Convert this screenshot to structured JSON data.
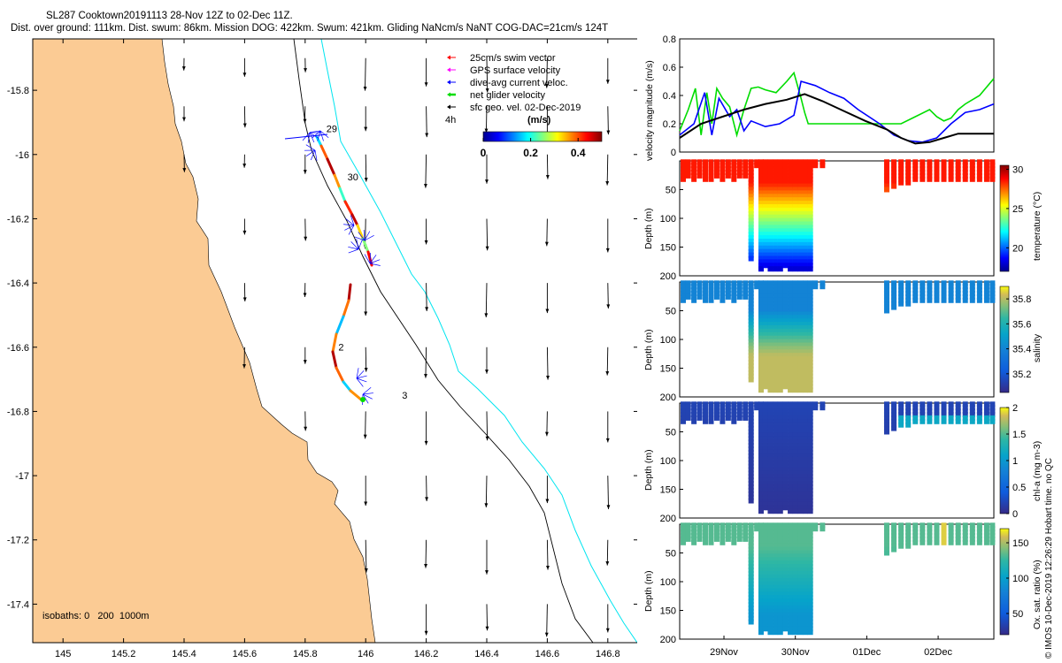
{
  "header": {
    "title_line1": "SL287 Cooktown20191113 28-Nov 12Z to 02-Dec 11Z.",
    "title_line2": "Dist. over ground: 111km. Dist. swum: 86km. Mission DOG: 422km. Swum: 421km. Gliding NaNcm/s NaNT COG-DAC=21cm/s 124T"
  },
  "footer_credit": "© IMOS 10-Dec-2019 12:26:29 Hobart time. no QC",
  "colors": {
    "land": "#FBCB94",
    "shelf_contour": "#00E5F0",
    "swim_vector": "#FF0000",
    "gps_velocity": "#FF00FF",
    "dac_current": "#0000FF",
    "net_velocity": "#00DD00",
    "geo_velocity": "#000000"
  },
  "chart_data": [
    {
      "type": "map",
      "id": "track-map",
      "x_ticks": [
        145,
        145.2,
        145.4,
        145.6,
        145.8,
        146,
        146.2,
        146.4,
        146.6,
        146.8
      ],
      "y_ticks": [
        -15.8,
        -16,
        -16.2,
        -16.4,
        -16.6,
        -16.8,
        -17,
        -17.2,
        -17.4
      ],
      "xlim": [
        144.9,
        146.9
      ],
      "ylim": [
        -17.52,
        -15.64
      ],
      "legend": [
        {
          "label": "25cm/s swim vector",
          "color_key": "swim_vector"
        },
        {
          "label": "GPS surface velocity",
          "color_key": "gps_velocity"
        },
        {
          "label": "dive-avg current veloc.",
          "color_key": "dac_current"
        },
        {
          "label": "net glider velocity",
          "color_key": "net_velocity"
        },
        {
          "label": "sfc geo. vel. 02-Dec-2019",
          "color_key": "geo_velocity"
        }
      ],
      "legend_time_label": "4h",
      "colorbar": {
        "unit": "(m/s)",
        "ticks": [
          "0",
          "0.2",
          "0.4"
        ],
        "range": [
          0,
          0.5
        ]
      },
      "isobaths_label": "isobaths: 0   200  1000m",
      "day_labels": [
        {
          "text": "29",
          "lon": 145.87,
          "lat": -15.93
        },
        {
          "text": "30",
          "lon": 145.94,
          "lat": -16.08
        },
        {
          "text": "2",
          "lon": 145.91,
          "lat": -16.61
        },
        {
          "text": "3",
          "lon": 146.12,
          "lat": -16.76
        }
      ],
      "geo_grid_lons": [
        145.4,
        145.6,
        145.8,
        146.0,
        146.2,
        146.4,
        146.6,
        146.8
      ],
      "geo_grid_lats": [
        -15.7,
        -15.85,
        -16.0,
        -16.2,
        -16.4,
        -16.6,
        -16.8,
        -17.0,
        -17.2,
        -17.4
      ]
    },
    {
      "type": "line",
      "id": "velocity-magnitude",
      "ylabel": "velocity magnitude (m/s)",
      "ylim": [
        0,
        0.8
      ],
      "y_ticks": [
        "0",
        "0.2",
        "0.4",
        "0.6",
        "0.8"
      ],
      "x_days": [
        0,
        1,
        2,
        3,
        4
      ],
      "series": [
        {
          "name": "net glider velocity",
          "color_key": "net_velocity",
          "x": [
            0,
            0.12,
            0.22,
            0.3,
            0.38,
            0.45,
            0.52,
            0.6,
            0.7,
            0.8,
            0.9,
            1.0,
            1.1,
            1.2,
            1.35,
            1.5,
            1.6,
            1.7,
            1.75,
            1.8,
            1.9,
            2.0,
            2.1,
            2.2,
            2.5,
            2.9,
            3.1,
            3.3,
            3.5,
            3.6,
            3.7,
            3.8,
            3.9,
            4.0,
            4.2,
            4.4
          ],
          "values": [
            0.15,
            0.3,
            0.45,
            0.12,
            0.42,
            0.2,
            0.45,
            0.38,
            0.32,
            0.12,
            0.3,
            0.45,
            0.46,
            0.44,
            0.42,
            0.5,
            0.56,
            0.38,
            0.28,
            0.2,
            0.2,
            0.2,
            0.2,
            0.2,
            0.2,
            0.2,
            0.2,
            0.25,
            0.3,
            0.25,
            0.22,
            0.24,
            0.3,
            0.34,
            0.4,
            0.52
          ]
        },
        {
          "name": "dive-avg current veloc.",
          "color_key": "dac_current",
          "x": [
            0,
            0.2,
            0.35,
            0.45,
            0.55,
            0.7,
            0.8,
            0.9,
            1.0,
            1.2,
            1.4,
            1.6,
            1.7,
            1.9,
            2.1,
            2.3,
            2.5,
            2.8,
            3.0,
            3.2,
            3.4,
            3.6,
            3.8,
            4.0,
            4.2,
            4.4
          ],
          "values": [
            0.12,
            0.2,
            0.42,
            0.12,
            0.38,
            0.25,
            0.3,
            0.15,
            0.22,
            0.18,
            0.2,
            0.26,
            0.5,
            0.47,
            0.42,
            0.38,
            0.3,
            0.2,
            0.12,
            0.08,
            0.07,
            0.1,
            0.2,
            0.28,
            0.3,
            0.34
          ]
        },
        {
          "name": "sfc geo. vel.",
          "color_key": "geo_velocity",
          "x": [
            0,
            0.3,
            0.6,
            0.9,
            1.2,
            1.5,
            1.75,
            2.0,
            2.3,
            2.6,
            2.9,
            3.1,
            3.3,
            3.5,
            3.7,
            3.9,
            4.2,
            4.4
          ],
          "values": [
            0.1,
            0.2,
            0.25,
            0.3,
            0.34,
            0.37,
            0.41,
            0.36,
            0.29,
            0.22,
            0.16,
            0.1,
            0.06,
            0.07,
            0.1,
            0.13,
            0.13,
            0.13
          ]
        }
      ]
    },
    {
      "type": "heatmap",
      "id": "temperature-section",
      "ylabel": "Depth (m)",
      "colorbar_label": "temperature (°C)",
      "y_ticks": [
        "50",
        "100",
        "150",
        "200"
      ],
      "colorbar_ticks": [
        "20",
        "25",
        "30"
      ],
      "cmap_range": [
        17,
        30.5
      ],
      "surface_value": 28.5,
      "deep_value": 18.0
    },
    {
      "type": "heatmap",
      "id": "salinity-section",
      "ylabel": "Depth (m)",
      "colorbar_label": "salinity",
      "y_ticks": [
        "50",
        "100",
        "150",
        "200"
      ],
      "colorbar_ticks": [
        "35.2",
        "35.4",
        "35.6",
        "35.8"
      ],
      "cmap_range": [
        35.05,
        35.9
      ],
      "surface_value": 35.3,
      "deep_value": 35.75
    },
    {
      "type": "heatmap",
      "id": "chla-section",
      "ylabel": "Depth (m)",
      "colorbar_label": "chl-a (mg m-3)",
      "y_ticks": [
        "50",
        "100",
        "150",
        "200"
      ],
      "colorbar_ticks": [
        "0",
        "0.5",
        "1",
        "1.5",
        "2"
      ],
      "cmap_range": [
        0,
        2
      ],
      "surface_value": 0.15,
      "deep_value": 0.1
    },
    {
      "type": "heatmap",
      "id": "oxygen-section",
      "ylabel": "Depth (m)",
      "colorbar_label": "Ox. sat. ratio (%)",
      "y_ticks": [
        "50",
        "100",
        "150",
        "200"
      ],
      "colorbar_ticks": [
        "50",
        "100",
        "150"
      ],
      "cmap_range": [
        20,
        170
      ],
      "surface_value": 115,
      "deep_value": 75
    }
  ],
  "time_axis": {
    "tick_labels": [
      "29Nov",
      "30Nov",
      "01Dec",
      "02Dec"
    ],
    "tick_days": [
      0.62,
      1.62,
      2.62,
      3.62
    ],
    "xlim_days": [
      0,
      4.4
    ]
  },
  "section_profiles": {
    "x_days": [
      0.05,
      0.12,
      0.2,
      0.28,
      0.36,
      0.44,
      0.52,
      0.6,
      0.68,
      0.76,
      0.84,
      0.92,
      1.0,
      1.08,
      1.14,
      1.2,
      1.27,
      1.34,
      1.41,
      1.48,
      1.55,
      1.62,
      1.69,
      1.76,
      1.83,
      1.9,
      2.0,
      2.5,
      2.6,
      2.7,
      2.8,
      2.9,
      3.0,
      3.1,
      3.2,
      3.3,
      3.4,
      3.5,
      3.6,
      3.7,
      3.8,
      3.9,
      4.0,
      4.1,
      4.2,
      4.3,
      4.38
    ],
    "max_depth_m": [
      35,
      30,
      32,
      30,
      35,
      33,
      30,
      35,
      30,
      32,
      30,
      30,
      170,
      10,
      190,
      185,
      190,
      190,
      190,
      185,
      190,
      190,
      190,
      190,
      190,
      10,
      10,
      0,
      0,
      0,
      0,
      55,
      45,
      40,
      40,
      35,
      35,
      35,
      35,
      35,
      35,
      35,
      35,
      35,
      35,
      35,
      35
    ]
  }
}
